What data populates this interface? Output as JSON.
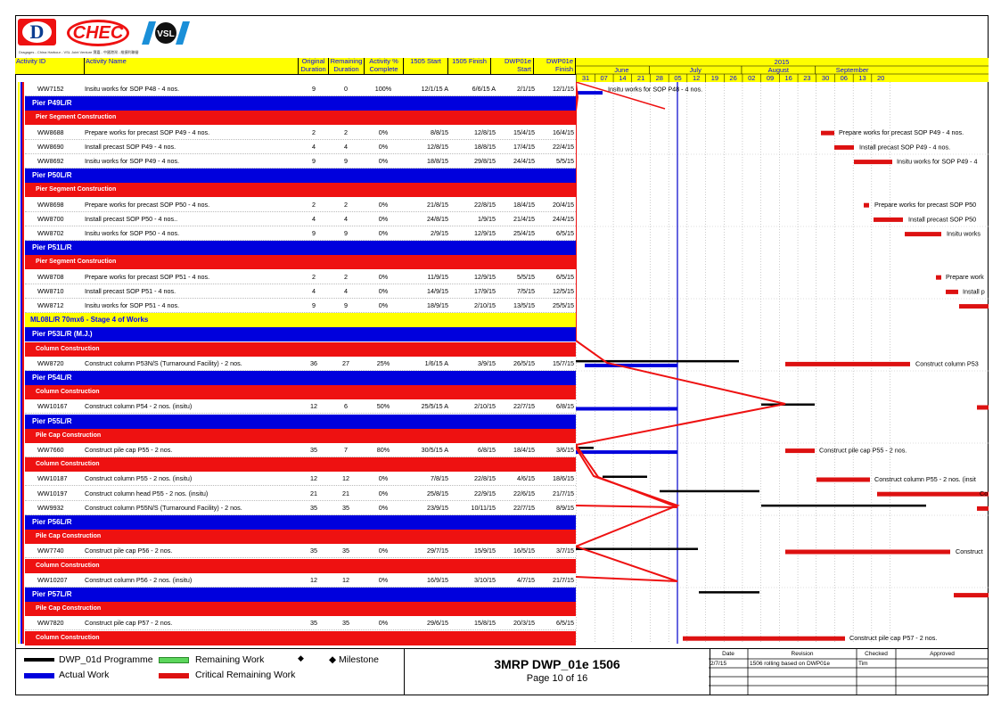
{
  "logos": {
    "d_letter": "D",
    "chec": "CHEC",
    "vsl": "VSL",
    "caption": "Dragages - China Harbour - VSL Joint Venture 寶嘉 - 中國港灣 - 維捷利聯營"
  },
  "columns": {
    "activity_id": "Activity ID",
    "activity_name": "Activity Name",
    "original_duration": [
      "Original",
      "Duration"
    ],
    "remaining_duration": [
      "Remaining",
      "Duration"
    ],
    "activity_pct": [
      "Activity %",
      "Complete"
    ],
    "start": "1505 Start",
    "finish": "1505 Finish",
    "dwp_start": [
      "DWP01e",
      "Start"
    ],
    "dwp_finish": [
      "DWP01e",
      "Finish"
    ]
  },
  "timeline": {
    "year": "2015",
    "months": [
      "June",
      "July",
      "August",
      "September"
    ],
    "weeks": [
      "31",
      "07",
      "14",
      "21",
      "28",
      "05",
      "12",
      "19",
      "26",
      "02",
      "09",
      "16",
      "23",
      "30",
      "06",
      "13",
      "20"
    ]
  },
  "rows": [
    {
      "type": "act",
      "id": "WW7152",
      "name": "Insitu works for SOP P48 - 4 nos.",
      "od": "9",
      "rd": "0",
      "pc": "100%",
      "s": "12/1/15 A",
      "f": "6/6/15 A",
      "ds": "2/1/15",
      "df": "12/1/15"
    },
    {
      "type": "blue",
      "label": "Pier P49L/R"
    },
    {
      "type": "red",
      "label": "Pier Segment Construction"
    },
    {
      "type": "act",
      "id": "WW8688",
      "name": "Prepare works for precast SOP P49 - 4 nos.",
      "od": "2",
      "rd": "2",
      "pc": "0%",
      "s": "8/8/15",
      "f": "12/8/15",
      "ds": "15/4/15",
      "df": "16/4/15"
    },
    {
      "type": "act",
      "id": "WW8690",
      "name": "Install precast SOP P49 - 4 nos.",
      "od": "4",
      "rd": "4",
      "pc": "0%",
      "s": "12/8/15",
      "f": "18/8/15",
      "ds": "17/4/15",
      "df": "22/4/15"
    },
    {
      "type": "act",
      "id": "WW8692",
      "name": "Insitu works for SOP P49 - 4 nos.",
      "od": "9",
      "rd": "9",
      "pc": "0%",
      "s": "18/8/15",
      "f": "29/8/15",
      "ds": "24/4/15",
      "df": "5/5/15"
    },
    {
      "type": "blue",
      "label": "Pier P50L/R"
    },
    {
      "type": "red",
      "label": "Pier Segment Construction"
    },
    {
      "type": "act",
      "id": "WW8698",
      "name": "Prepare works for precast SOP P50 - 4 nos.",
      "od": "2",
      "rd": "2",
      "pc": "0%",
      "s": "21/8/15",
      "f": "22/8/15",
      "ds": "18/4/15",
      "df": "20/4/15"
    },
    {
      "type": "act",
      "id": "WW8700",
      "name": "Install precast SOP P50 - 4 nos..",
      "od": "4",
      "rd": "4",
      "pc": "0%",
      "s": "24/8/15",
      "f": "1/9/15",
      "ds": "21/4/15",
      "df": "24/4/15"
    },
    {
      "type": "act",
      "id": "WW8702",
      "name": "Insitu works for SOP P50 - 4 nos.",
      "od": "9",
      "rd": "9",
      "pc": "0%",
      "s": "2/9/15",
      "f": "12/9/15",
      "ds": "25/4/15",
      "df": "6/5/15"
    },
    {
      "type": "blue",
      "label": "Pier P51L/R"
    },
    {
      "type": "red",
      "label": "Pier Segment Construction"
    },
    {
      "type": "act",
      "id": "WW8708",
      "name": "Prepare works for precast SOP P51 - 4 nos.",
      "od": "2",
      "rd": "2",
      "pc": "0%",
      "s": "11/9/15",
      "f": "12/9/15",
      "ds": "5/5/15",
      "df": "6/5/15"
    },
    {
      "type": "act",
      "id": "WW8710",
      "name": "Install precast SOP P51 - 4 nos.",
      "od": "4",
      "rd": "4",
      "pc": "0%",
      "s": "14/9/15",
      "f": "17/9/15",
      "ds": "7/5/15",
      "df": "12/5/15"
    },
    {
      "type": "act",
      "id": "WW8712",
      "name": "Insitu works for SOP P51 - 4 nos.",
      "od": "9",
      "rd": "9",
      "pc": "0%",
      "s": "18/9/15",
      "f": "2/10/15",
      "ds": "13/5/15",
      "df": "25/5/15"
    },
    {
      "type": "yellow",
      "label": "ML08L/R 70mx6 - Stage 4 of Works"
    },
    {
      "type": "blue",
      "label": "Pier P53L/R (M.J.)"
    },
    {
      "type": "red",
      "label": "Column Construction"
    },
    {
      "type": "act",
      "id": "WW8720",
      "name": "Construct column P53N/S (Turnaround Facility) - 2 nos.",
      "od": "36",
      "rd": "27",
      "pc": "25%",
      "s": "1/6/15 A",
      "f": "3/9/15",
      "ds": "26/5/15",
      "df": "15/7/15"
    },
    {
      "type": "blue",
      "label": "Pier P54L/R"
    },
    {
      "type": "red",
      "label": "Column Construction"
    },
    {
      "type": "act",
      "id": "WW10167",
      "name": "Construct column P54 - 2 nos. (insitu)",
      "od": "12",
      "rd": "6",
      "pc": "50%",
      "s": "25/5/15 A",
      "f": "2/10/15",
      "ds": "22/7/15",
      "df": "6/8/15"
    },
    {
      "type": "blue",
      "label": "Pier P55L/R"
    },
    {
      "type": "red",
      "label": "Pile Cap Construction"
    },
    {
      "type": "act",
      "id": "WW7660",
      "name": "Construct pile cap P55 - 2 nos.",
      "od": "35",
      "rd": "7",
      "pc": "80%",
      "s": "30/5/15 A",
      "f": "6/8/15",
      "ds": "18/4/15",
      "df": "3/6/15"
    },
    {
      "type": "red",
      "label": "Column Construction"
    },
    {
      "type": "act",
      "id": "WW10187",
      "name": "Construct column P55 - 2 nos. (insitu)",
      "od": "12",
      "rd": "12",
      "pc": "0%",
      "s": "7/8/15",
      "f": "22/8/15",
      "ds": "4/6/15",
      "df": "18/6/15"
    },
    {
      "type": "act",
      "id": "WW10197",
      "name": "Construct column head P55 - 2 nos. (insitu)",
      "od": "21",
      "rd": "21",
      "pc": "0%",
      "s": "25/8/15",
      "f": "22/9/15",
      "ds": "22/6/15",
      "df": "21/7/15"
    },
    {
      "type": "act",
      "id": "WW9932",
      "name": "Construct column P55N/S (Turnaround Facility) - 2 nos.",
      "od": "35",
      "rd": "35",
      "pc": "0%",
      "s": "23/9/15",
      "f": "10/11/15",
      "ds": "22/7/15",
      "df": "8/9/15"
    },
    {
      "type": "blue",
      "label": "Pier P56L/R"
    },
    {
      "type": "red",
      "label": "Pile Cap Construction"
    },
    {
      "type": "act",
      "id": "WW7740",
      "name": "Construct pile cap P56 - 2 nos.",
      "od": "35",
      "rd": "35",
      "pc": "0%",
      "s": "29/7/15",
      "f": "15/9/15",
      "ds": "16/5/15",
      "df": "3/7/15"
    },
    {
      "type": "red",
      "label": "Column Construction"
    },
    {
      "type": "act",
      "id": "WW10207",
      "name": "Construct column P56 - 2 nos. (insitu)",
      "od": "12",
      "rd": "12",
      "pc": "0%",
      "s": "16/9/15",
      "f": "3/10/15",
      "ds": "4/7/15",
      "df": "21/7/15"
    },
    {
      "type": "blue",
      "label": "Pier P57L/R"
    },
    {
      "type": "red",
      "label": "Pile Cap Construction"
    },
    {
      "type": "act",
      "id": "WW7820",
      "name": "Construct pile cap P57 - 2 nos.",
      "od": "35",
      "rd": "35",
      "pc": "0%",
      "s": "29/6/15",
      "f": "15/8/15",
      "ds": "20/3/15",
      "df": "6/5/15"
    },
    {
      "type": "red",
      "label": "Column Construction"
    }
  ],
  "gantt_labels": [
    {
      "row": 0,
      "text": "Insitu works for SOP P48 - 4 nos."
    },
    {
      "row": 3,
      "text": "Prepare works for precast SOP P49 - 4 nos."
    },
    {
      "row": 4,
      "text": "Install precast SOP P49 - 4 nos."
    },
    {
      "row": 5,
      "text": "Insitu works for SOP P49 - 4"
    },
    {
      "row": 8,
      "text": "Prepare works for precast SOP P50"
    },
    {
      "row": 9,
      "text": "Install precast SOP P50"
    },
    {
      "row": 10,
      "text": "Insitu works"
    },
    {
      "row": 13,
      "text": "Prepare work"
    },
    {
      "row": 14,
      "text": "Install p"
    },
    {
      "row": 19,
      "text": "Construct column P53"
    },
    {
      "row": 25,
      "text": "Construct pile cap P55 - 2 nos."
    },
    {
      "row": 27,
      "text": "Construct column P55 - 2 nos. (insit"
    },
    {
      "row": 28,
      "text": "Co"
    },
    {
      "row": 32,
      "text": "Construct"
    },
    {
      "row": 38,
      "text": "Construct pile cap P57 - 2 nos."
    }
  ],
  "legend": {
    "programme": "DWP_01d Programme",
    "remaining": "Remaining Work",
    "milestone": "◆ Milestone",
    "actual": "Actual Work",
    "critical": "Critical Remaining Work"
  },
  "title_block": {
    "title": "3MRP DWP_01e 1506",
    "page": "Page 10 of 16"
  },
  "revision": {
    "headers": [
      "Date",
      "Revision",
      "Checked",
      "Approved"
    ],
    "date": "2/7/15",
    "description": "1506 rolling based on DWP01e",
    "checked": "Tim"
  },
  "colors": {
    "header_yellow": "#ffff00",
    "blue_band": "#0000dd",
    "red_band": "#ee1111",
    "critical_bar": "#dd1111",
    "data_date_line": "#0000cc"
  }
}
